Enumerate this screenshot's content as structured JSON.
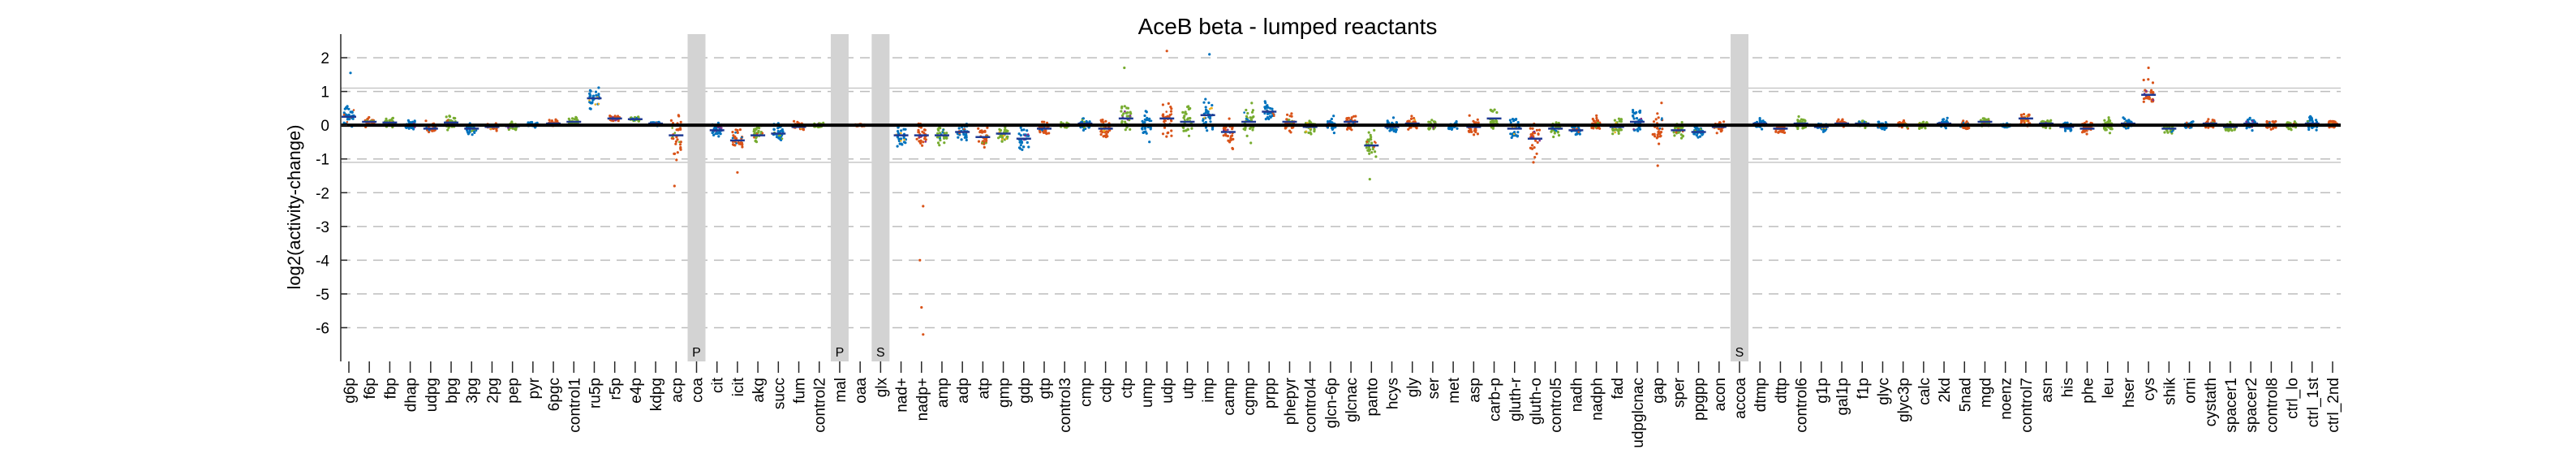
{
  "chart_data": {
    "type": "scatter",
    "title": "AceB beta - lumped reactants",
    "ylabel": "log2(activity-change)",
    "xlabel": "",
    "ylim": [
      -7,
      2.7
    ],
    "yticks": [
      2,
      1,
      0,
      -1,
      -2,
      -3,
      -4,
      -5,
      -6
    ],
    "ytick_labels": [
      "2",
      "1",
      "0",
      "-1",
      "-2",
      "-3",
      "-4",
      "-5",
      "-6"
    ],
    "grid": "dashed horizontal",
    "solid_reference_lines": [
      1.1,
      -1.1
    ],
    "zero_line": 0,
    "series_colors": [
      "#0072BD",
      "#D95319",
      "#77AC30",
      "#EDB120",
      "#7E2F8E"
    ],
    "categories": [
      "g6p",
      "f6p",
      "fbp",
      "dhap",
      "udpg",
      "bpg",
      "3pg",
      "2pg",
      "pep",
      "pyr",
      "6pgc",
      "control1",
      "ru5p",
      "r5p",
      "e4p",
      "kdpg",
      "acp",
      "coa",
      "cit",
      "icit",
      "akg",
      "succ",
      "fum",
      "control2",
      "mal",
      "oaa",
      "glx",
      "nad+",
      "nadp+",
      "amp",
      "adp",
      "atp",
      "gmp",
      "gdp",
      "gtp",
      "control3",
      "cmp",
      "cdp",
      "ctp",
      "ump",
      "udp",
      "utp",
      "imp",
      "camp",
      "cgmp",
      "prpp",
      "phepyr",
      "control4",
      "glcn-6p",
      "glcnac",
      "panto",
      "hcys",
      "gly",
      "ser",
      "met",
      "asp",
      "carb-p",
      "gluth-r",
      "gluth-o",
      "control5",
      "nadh",
      "nadph",
      "fad",
      "udpglcnac",
      "gap",
      "sper",
      "ppgpp",
      "acon",
      "accoa",
      "dtmp",
      "dttp",
      "control6",
      "g1p",
      "gal1p",
      "f1p",
      "glyc",
      "glyc3p",
      "calc",
      "2kd",
      "5nad",
      "mgd",
      "noenz",
      "control7",
      "asn",
      "his",
      "phe",
      "leu",
      "hser",
      "cys",
      "shik",
      "orni",
      "cystath",
      "spacer1",
      "spacer2",
      "control8",
      "ctrl_lo",
      "ctrl_1st",
      "ctrl_2nd"
    ],
    "medians": [
      0.25,
      0.1,
      0.08,
      0.02,
      -0.1,
      0.08,
      -0.1,
      -0.05,
      -0.03,
      0.02,
      0.05,
      0.1,
      0.8,
      0.2,
      0.18,
      0.05,
      -0.3,
      -0.1,
      -0.15,
      -0.45,
      -0.3,
      -0.25,
      -0.05,
      0.0,
      -0.2,
      0.0,
      0.0,
      -0.3,
      -0.3,
      -0.3,
      -0.2,
      -0.35,
      -0.25,
      -0.4,
      -0.1,
      0.0,
      0.05,
      -0.1,
      0.2,
      0.0,
      0.2,
      0.1,
      0.3,
      -0.2,
      0.1,
      0.4,
      0.1,
      -0.05,
      0.0,
      0.1,
      -0.6,
      -0.05,
      0.05,
      0.0,
      0.0,
      -0.05,
      0.2,
      -0.1,
      -0.4,
      -0.1,
      -0.15,
      0.0,
      -0.05,
      0.1,
      0.0,
      -0.15,
      -0.2,
      -0.05,
      0.0,
      0.05,
      -0.1,
      0.05,
      -0.05,
      0.05,
      0.05,
      0.0,
      0.0,
      0.0,
      0.05,
      0.0,
      0.1,
      0.0,
      0.2,
      0.05,
      -0.05,
      -0.1,
      0.0,
      0.05,
      0.9,
      -0.1,
      0.0,
      0.05,
      -0.05,
      0.05,
      0.0,
      0.0,
      0.05,
      0.02
    ],
    "spreads": [
      0.6,
      0.2,
      0.2,
      0.2,
      0.25,
      0.3,
      0.2,
      0.15,
      0.15,
      0.1,
      0.15,
      0.2,
      0.45,
      0.15,
      0.1,
      0.1,
      0.9,
      0.3,
      0.3,
      0.6,
      0.4,
      0.4,
      0.2,
      0.1,
      0.3,
      0.05,
      0.05,
      0.5,
      0.5,
      0.4,
      0.4,
      0.5,
      0.4,
      0.4,
      0.3,
      0.1,
      0.3,
      0.5,
      0.7,
      0.7,
      0.9,
      0.7,
      0.9,
      0.6,
      0.7,
      0.5,
      0.4,
      0.3,
      0.3,
      0.3,
      0.6,
      0.4,
      0.3,
      0.2,
      0.2,
      0.4,
      0.5,
      0.6,
      0.6,
      0.3,
      0.3,
      0.3,
      0.5,
      0.5,
      0.8,
      0.4,
      0.3,
      0.2,
      0.05,
      0.2,
      0.2,
      0.25,
      0.2,
      0.15,
      0.2,
      0.15,
      0.2,
      0.15,
      0.2,
      0.25,
      0.2,
      0.1,
      0.3,
      0.2,
      0.2,
      0.3,
      0.3,
      0.25,
      0.5,
      0.3,
      0.2,
      0.2,
      0.2,
      0.3,
      0.2,
      0.2,
      0.3,
      0.2
    ],
    "gray_bands": [
      {
        "category": "coa",
        "label": "P"
      },
      {
        "category": "mal",
        "label": "P"
      },
      {
        "category": "glx",
        "label": "S"
      },
      {
        "category": "accoa",
        "label": "S"
      }
    ],
    "outliers": [
      {
        "category": "acp",
        "y": -1.8
      },
      {
        "category": "icit",
        "y": -1.4
      },
      {
        "category": "nadp+",
        "y": -2.4
      },
      {
        "category": "nadp+",
        "y": -4.0
      },
      {
        "category": "nadp+",
        "y": -5.4
      },
      {
        "category": "nadp+",
        "y": -6.2
      },
      {
        "category": "panto",
        "y": -1.6
      },
      {
        "category": "udp",
        "y": 2.2
      },
      {
        "category": "imp",
        "y": 2.1
      },
      {
        "category": "ctp",
        "y": 1.7
      },
      {
        "category": "cys",
        "y": 1.7
      },
      {
        "category": "g6p",
        "y": 1.55
      },
      {
        "category": "gluth-o",
        "y": -1.1
      },
      {
        "category": "gap",
        "y": -1.2
      }
    ]
  }
}
